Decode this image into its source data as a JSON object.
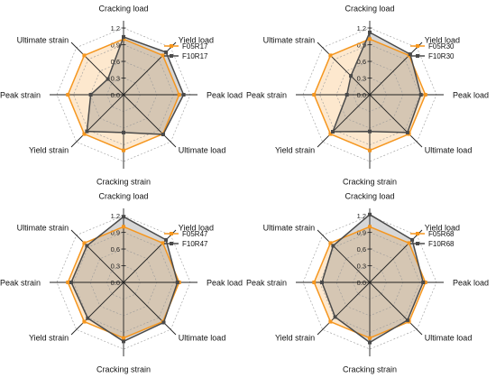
{
  "chart_data": [
    {
      "type": "radar",
      "axes": [
        "Cracking load",
        "Yield load",
        "Peak load",
        "Ultimate load",
        "Cracking strain",
        "Yield strain",
        "Peak strain",
        "Ultimate strain"
      ],
      "ticks": [
        "1.2",
        "0.9",
        "0.6",
        "0.3",
        "0.0"
      ],
      "rlim": [
        0,
        1.2
      ],
      "grid": true,
      "legend": "top-right",
      "series": [
        {
          "name": "F05R17",
          "color": "#f5961e",
          "values": [
            1.0,
            1.0,
            1.0,
            1.0,
            1.0,
            1.0,
            1.0,
            1.0
          ]
        },
        {
          "name": "F10R17",
          "color": "#4a4a4a",
          "values": [
            1.04,
            1.08,
            1.08,
            1.01,
            0.68,
            0.93,
            0.59,
            0.4
          ]
        }
      ]
    },
    {
      "type": "radar",
      "axes": [
        "Cracking load",
        "Yield load",
        "Peak load",
        "Ultimate load",
        "Cracking strain",
        "Yield strain",
        "Peak strain",
        "Ultimate strain"
      ],
      "ticks": [
        "1.2",
        "0.9",
        "0.6",
        "0.3",
        "0.0"
      ],
      "rlim": [
        0,
        1.2
      ],
      "grid": true,
      "legend": "top-right",
      "series": [
        {
          "name": "F05R30",
          "color": "#f5961e",
          "values": [
            1.0,
            1.0,
            1.0,
            1.0,
            1.0,
            1.0,
            1.0,
            1.0
          ]
        },
        {
          "name": "F10R30",
          "color": "#4a4a4a",
          "values": [
            1.12,
            1.03,
            0.92,
            0.96,
            0.66,
            0.94,
            0.41,
            0.48
          ]
        }
      ]
    },
    {
      "type": "radar",
      "axes": [
        "Cracking load",
        "Yield load",
        "Peak load",
        "Ultimate load",
        "Cracking strain",
        "Yield strain",
        "Peak strain",
        "Ultimate strain"
      ],
      "ticks": [
        "1.2",
        "0.9",
        "0.6",
        "0.3",
        "0.0"
      ],
      "rlim": [
        0,
        1.2
      ],
      "grid": true,
      "legend": "top-right",
      "series": [
        {
          "name": "F05R47",
          "color": "#f5961e",
          "values": [
            1.0,
            1.0,
            1.0,
            1.0,
            1.0,
            1.0,
            1.0,
            1.0
          ]
        },
        {
          "name": "F10R47",
          "color": "#4a4a4a",
          "values": [
            1.18,
            1.08,
            0.97,
            1.02,
            1.06,
            0.91,
            0.94,
            0.93
          ]
        }
      ]
    },
    {
      "type": "radar",
      "axes": [
        "Cracking load",
        "Yield load",
        "Peak load",
        "Ultimate load",
        "Cracking strain",
        "Yield strain",
        "Peak strain",
        "Ultimate strain"
      ],
      "ticks": [
        "1.2",
        "0.9",
        "0.6",
        "0.3",
        "0.0"
      ],
      "rlim": [
        0,
        1.2
      ],
      "grid": true,
      "legend": "top-right",
      "series": [
        {
          "name": "F05R68",
          "color": "#f5961e",
          "values": [
            1.0,
            1.0,
            1.0,
            1.0,
            1.0,
            1.0,
            1.0,
            1.0
          ]
        },
        {
          "name": "F10R68",
          "color": "#4a4a4a",
          "values": [
            1.22,
            1.08,
            0.96,
            0.96,
            1.08,
            0.88,
            0.86,
            0.93
          ]
        }
      ]
    }
  ]
}
